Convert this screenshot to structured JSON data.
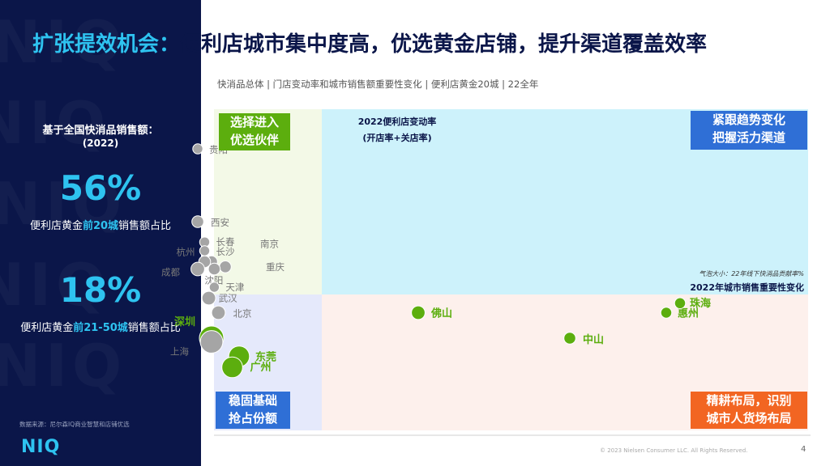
{
  "title": {
    "accent": "扩张提效机会：",
    "main": "便利店城市集中度高，优选黄金店铺，提升渠道覆盖效率"
  },
  "subtitle": "快消品总体 | 门店变动率和城市销售额重要性变化 | 便利店黄金20城 | 22全年",
  "sidebar": {
    "watermark": "NIQ",
    "heading_line1": "基于全国快消品销售额：",
    "heading_line2": "(2022)",
    "stat1": {
      "value": "56%",
      "pre": "便利店黄金",
      "hl": "前20城",
      "post": "销售额占比"
    },
    "stat2": {
      "value": "18%",
      "pre": "便利店黄金",
      "hl": "前21-50城",
      "post": "销售额占比"
    },
    "source": "数据来源：尼尔森IQ商业智慧和店铺优选",
    "logo": "NIQ"
  },
  "quadrants": {
    "top_left": {
      "line1": "选择进入",
      "line2": "优选伙伴",
      "color": "#5cae0e"
    },
    "top_right": {
      "line1": "紧跟趋势变化",
      "line2": "把握活力渠道",
      "color": "#2f6fd6"
    },
    "bottom_left": {
      "line1": "稳固基础",
      "line2": "抢占份额",
      "color": "#2f6fd6"
    },
    "bottom_right": {
      "line1": "精耕布局，识别",
      "line2": "城市人货场布局",
      "color": "#f26522"
    }
  },
  "axis_texts": {
    "y_line1": "2022便利店变动率",
    "y_line2": "(开店率+关店率)",
    "bubble_note": "气泡大小：22年线下快消品贡献率%",
    "x_label": "2022年城市销售重要性变化"
  },
  "colors": {
    "accent": "#2ec3f0",
    "navy": "#0b1649",
    "green": "#5cae0e",
    "grey": "#a5a5a5"
  },
  "chart_data": {
    "type": "scatter",
    "points": [
      {
        "name": "贵阳",
        "x": -0.9,
        "y": 2.0,
        "size": 0.2,
        "color": "grey"
      },
      {
        "name": "西安",
        "x": -0.9,
        "y": 1.0,
        "size": 0.3,
        "color": "grey"
      },
      {
        "name": "长春",
        "x": -0.85,
        "y": 0.72,
        "size": 0.2,
        "color": "grey"
      },
      {
        "name": "长沙",
        "x": -0.85,
        "y": 0.6,
        "size": 0.2,
        "color": "grey"
      },
      {
        "name": "南京",
        "x": -0.8,
        "y": 0.45,
        "size": 0.3,
        "color": "grey"
      },
      {
        "name": "杭州",
        "x": -0.85,
        "y": 0.45,
        "size": 0.3,
        "color": "grey"
      },
      {
        "name": "重庆",
        "x": -0.7,
        "y": 0.38,
        "size": 0.3,
        "color": "grey"
      },
      {
        "name": "成都",
        "x": -0.9,
        "y": 0.35,
        "size": 0.4,
        "color": "grey"
      },
      {
        "name": "沈阳",
        "x": -0.78,
        "y": 0.35,
        "size": 0.3,
        "color": "grey"
      },
      {
        "name": "天津",
        "x": -0.78,
        "y": 0.1,
        "size": 0.2,
        "color": "grey"
      },
      {
        "name": "武汉",
        "x": -0.82,
        "y": -0.05,
        "size": 0.4,
        "color": "grey"
      },
      {
        "name": "北京",
        "x": -0.75,
        "y": -0.25,
        "size": 0.4,
        "color": "grey"
      },
      {
        "name": "深圳",
        "x": -0.8,
        "y": -0.6,
        "size": 1.0,
        "color": "green"
      },
      {
        "name": "上海",
        "x": -0.8,
        "y": -0.65,
        "size": 0.9,
        "color": "grey"
      },
      {
        "name": "东莞",
        "x": -0.6,
        "y": -0.85,
        "size": 0.8,
        "color": "green"
      },
      {
        "name": "广州",
        "x": -0.65,
        "y": -1.0,
        "size": 0.8,
        "color": "green"
      },
      {
        "name": "佛山",
        "x": 0.7,
        "y": -0.25,
        "size": 0.4,
        "color": "green"
      },
      {
        "name": "中山",
        "x": 1.8,
        "y": -0.6,
        "size": 0.3,
        "color": "green"
      },
      {
        "name": "惠州",
        "x": 2.5,
        "y": -0.25,
        "size": 0.25,
        "color": "green"
      },
      {
        "name": "珠海",
        "x": 2.6,
        "y": -0.12,
        "size": 0.25,
        "color": "green"
      }
    ]
  }
}
